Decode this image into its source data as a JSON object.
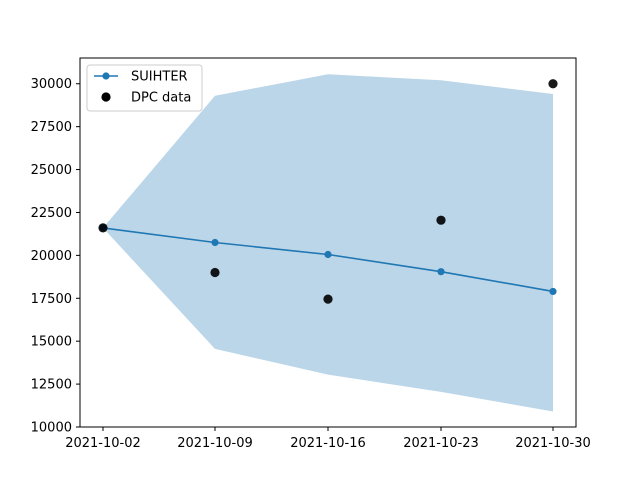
{
  "chart_data": {
    "type": "line",
    "title": "",
    "xlabel": "",
    "ylabel": "",
    "x": [
      "2021-10-02",
      "2021-10-09",
      "2021-10-16",
      "2021-10-23",
      "2021-10-30"
    ],
    "xticks": [
      "2021-10-02",
      "2021-10-09",
      "2021-10-16",
      "2021-10-23",
      "2021-10-30"
    ],
    "ylim": [
      10000,
      31500
    ],
    "yticks": [
      10000,
      12500,
      15000,
      17500,
      20000,
      22500,
      25000,
      27500,
      30000
    ],
    "grid": false,
    "legend_position": "upper-left",
    "series": [
      {
        "name": "SUIHTER",
        "kind": "line",
        "color": "#1f77b4",
        "values": [
          21600,
          20750,
          20050,
          19050,
          17900
        ]
      },
      {
        "name": "DPC data",
        "kind": "scatter",
        "color": "#000000",
        "values": [
          21600,
          19000,
          17450,
          22050,
          30000
        ]
      }
    ],
    "band": {
      "color": "#1f77b4",
      "opacity": 0.3,
      "lower": [
        21600,
        14550,
        13050,
        12050,
        10900
      ],
      "upper": [
        21600,
        29300,
        30550,
        30200,
        29400
      ]
    }
  }
}
